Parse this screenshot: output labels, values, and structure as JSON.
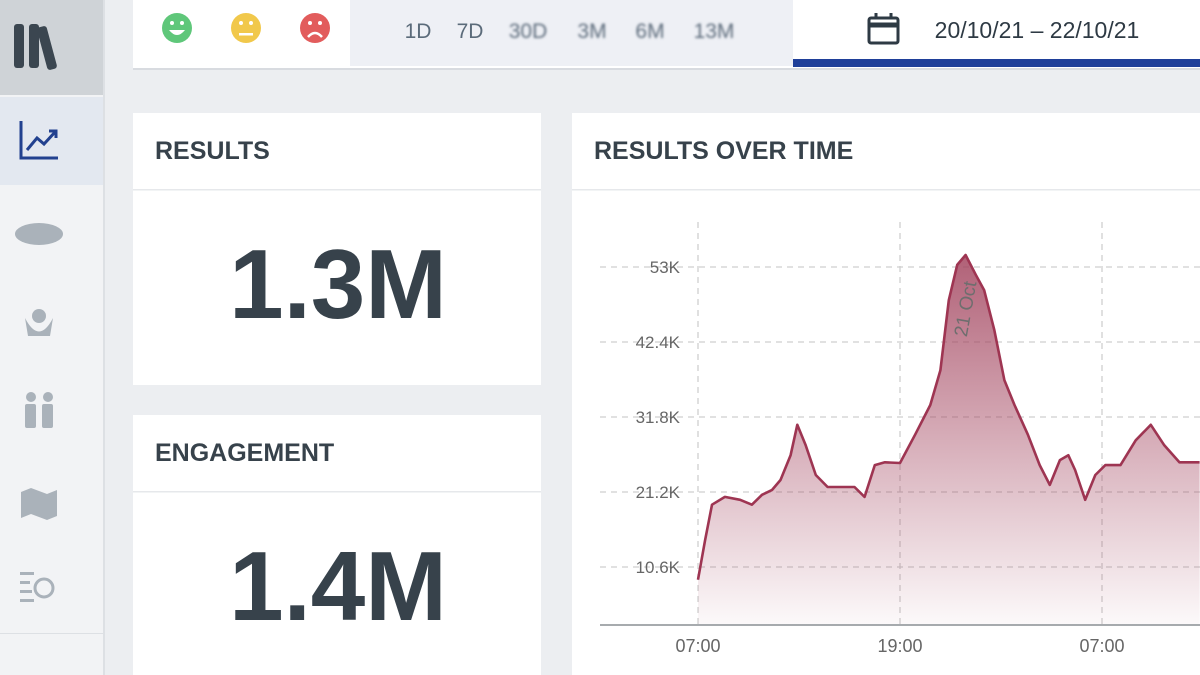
{
  "toolbar": {
    "ranges": [
      "1D",
      "7D",
      "30D",
      "3M",
      "6M",
      "13M"
    ],
    "date_range": "20/10/21 – 22/10/21"
  },
  "cards": [
    {
      "title": "RESULTS",
      "value": "1.3M"
    },
    {
      "title": "ENGAGEMENT",
      "value": "1.4M"
    }
  ],
  "chart_data": {
    "type": "area",
    "title": "RESULTS OVER TIME",
    "annotation": "21 Oct",
    "color": "#9e3552",
    "x": [
      0,
      0.42,
      0.83,
      1.6,
      2.5,
      3.2,
      3.8,
      4.4,
      4.9,
      5.5,
      5.9,
      6.4,
      7.0,
      7.7,
      8.7,
      9.3,
      9.9,
      10.5,
      11.1,
      12.0,
      12.9,
      13.8,
      14.4,
      14.9,
      15.4,
      15.9,
      16.5,
      17.0,
      17.6,
      18.2,
      18.8,
      19.6,
      20.3,
      20.9,
      21.5,
      22.0,
      22.4,
      23.0,
      23.6,
      24.2,
      25.1,
      26.0,
      26.9,
      27.7,
      28.6,
      29.8
    ],
    "values": [
      8800,
      14400,
      19400,
      20500,
      20100,
      19400,
      20800,
      21500,
      22900,
      26400,
      30700,
      27800,
      23600,
      21900,
      21900,
      21900,
      20500,
      25000,
      25400,
      25300,
      29300,
      33500,
      38400,
      48300,
      53300,
      54700,
      51900,
      49700,
      44100,
      37000,
      33500,
      29300,
      25000,
      22200,
      25700,
      26400,
      24300,
      20100,
      23600,
      25000,
      25000,
      28500,
      30700,
      27800,
      25400,
      25400
    ],
    "xlim": [
      -6,
      30
    ],
    "xticks": [
      {
        "value": 0,
        "label": "07:00"
      },
      {
        "value": 12,
        "label": "19:00"
      },
      {
        "value": 24,
        "label": "07:00"
      }
    ],
    "ylim": [
      2400,
      59600
    ],
    "yticks": [
      {
        "value": 10600,
        "label": "10.6K"
      },
      {
        "value": 21200,
        "label": "21.2K"
      },
      {
        "value": 31800,
        "label": "31.8K"
      },
      {
        "value": 42400,
        "label": "42.4K"
      },
      {
        "value": 53000,
        "label": "53K"
      }
    ],
    "grid": true
  }
}
